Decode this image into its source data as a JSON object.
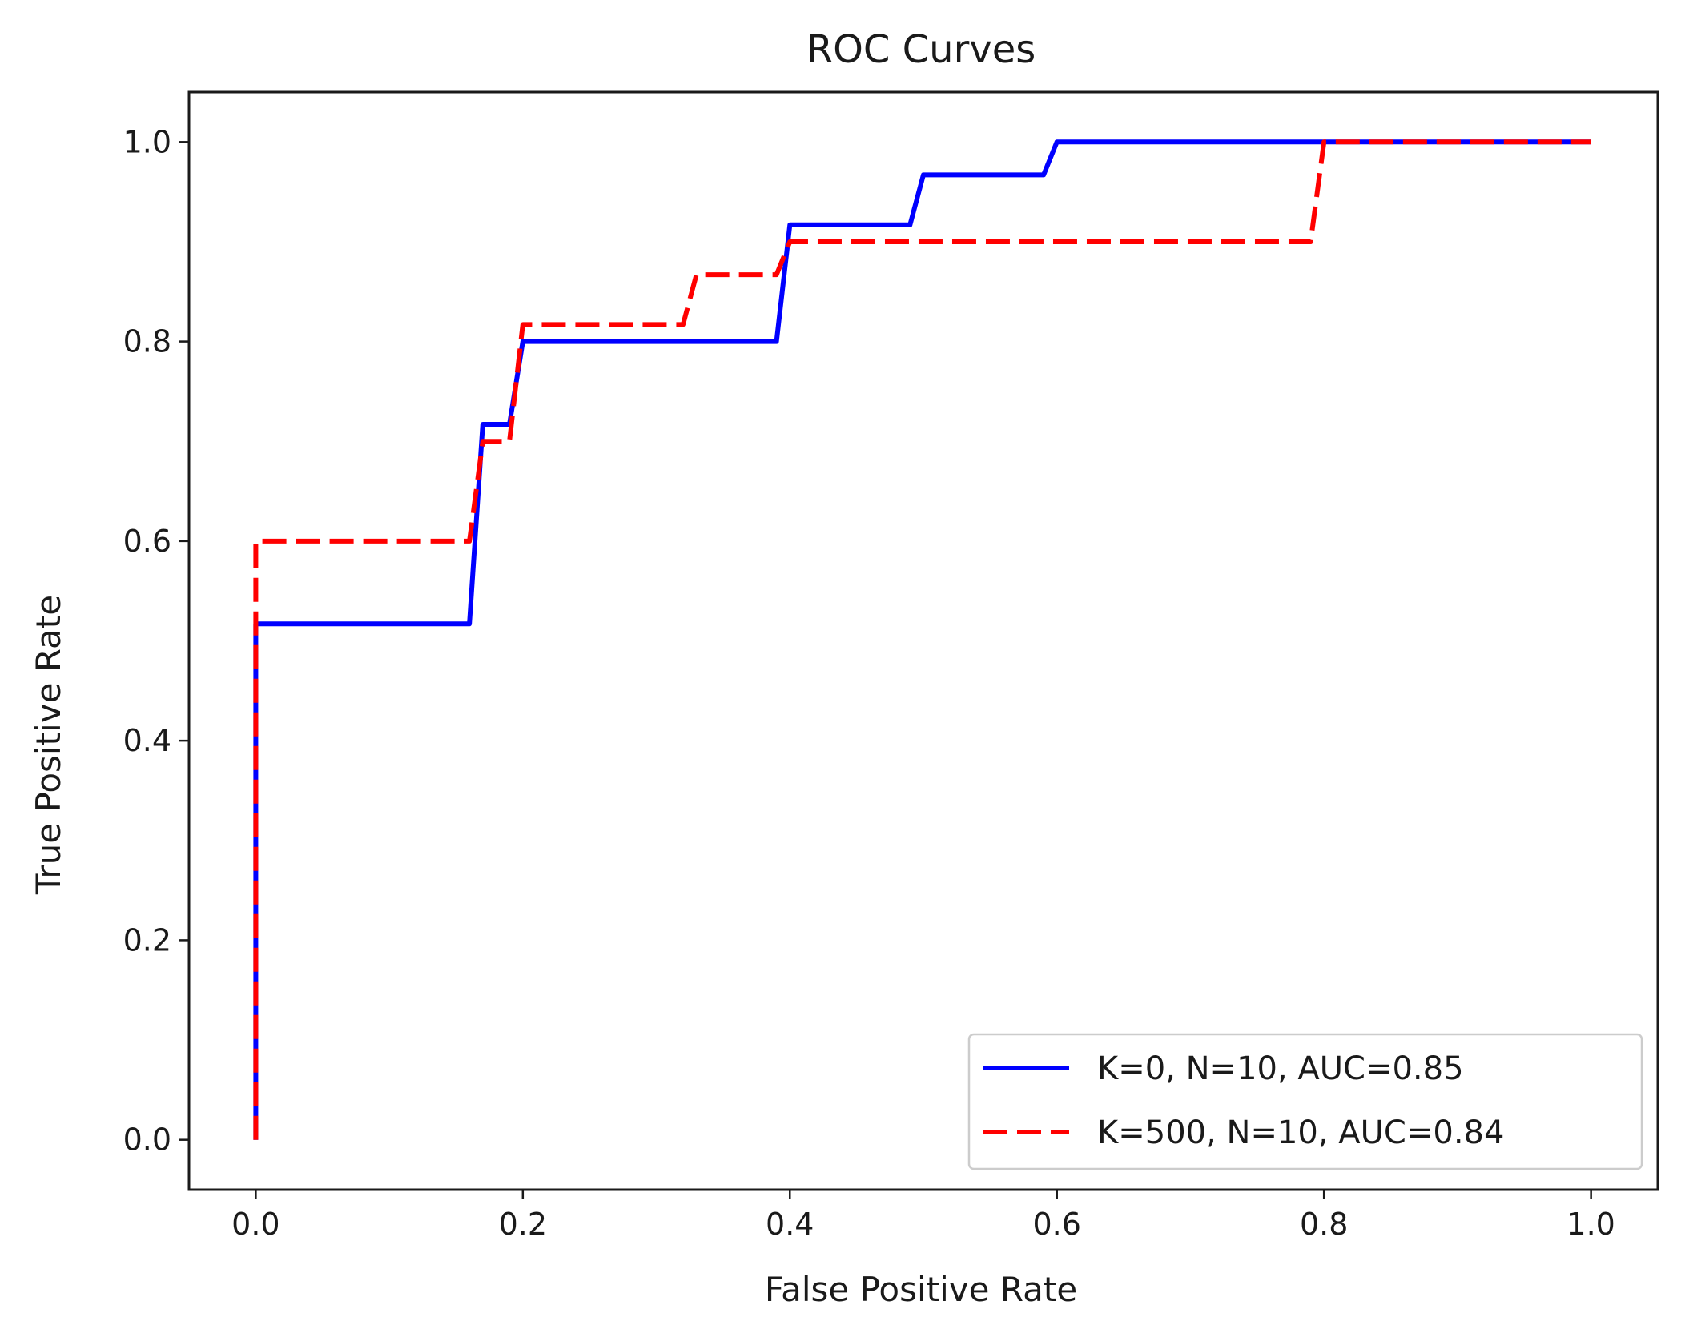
{
  "chart_data": {
    "type": "line",
    "title": "ROC Curves",
    "xlabel": "False Positive Rate",
    "ylabel": "True Positive Rate",
    "xlim": [
      -0.05,
      1.05
    ],
    "ylim": [
      -0.05,
      1.05
    ],
    "xticks": [
      0.0,
      0.2,
      0.4,
      0.6,
      0.8,
      1.0
    ],
    "yticks": [
      0.0,
      0.2,
      0.4,
      0.6,
      0.8,
      1.0
    ],
    "xtick_labels": [
      "0.0",
      "0.2",
      "0.4",
      "0.6",
      "0.8",
      "1.0"
    ],
    "ytick_labels": [
      "0.0",
      "0.2",
      "0.4",
      "0.6",
      "0.8",
      "1.0"
    ],
    "grid": false,
    "legend_position": "lower-right",
    "series": [
      {
        "name": "K=0, N=10, AUC=0.85",
        "color": "#0000ff",
        "style": "solid",
        "x": [
          0.0,
          0.0,
          0.16,
          0.17,
          0.19,
          0.2,
          0.39,
          0.4,
          0.49,
          0.5,
          0.59,
          0.6,
          1.0
        ],
        "y": [
          0.0,
          0.517,
          0.517,
          0.717,
          0.717,
          0.8,
          0.8,
          0.917,
          0.917,
          0.967,
          0.967,
          1.0,
          1.0
        ]
      },
      {
        "name": "K=500, N=10, AUC=0.84",
        "color": "#ff0000",
        "style": "dashed",
        "x": [
          0.0,
          0.0,
          0.16,
          0.17,
          0.19,
          0.2,
          0.32,
          0.33,
          0.39,
          0.4,
          0.79,
          0.8,
          1.0
        ],
        "y": [
          0.0,
          0.6,
          0.6,
          0.7,
          0.7,
          0.817,
          0.817,
          0.867,
          0.867,
          0.9,
          0.9,
          1.0,
          1.0
        ]
      }
    ]
  }
}
